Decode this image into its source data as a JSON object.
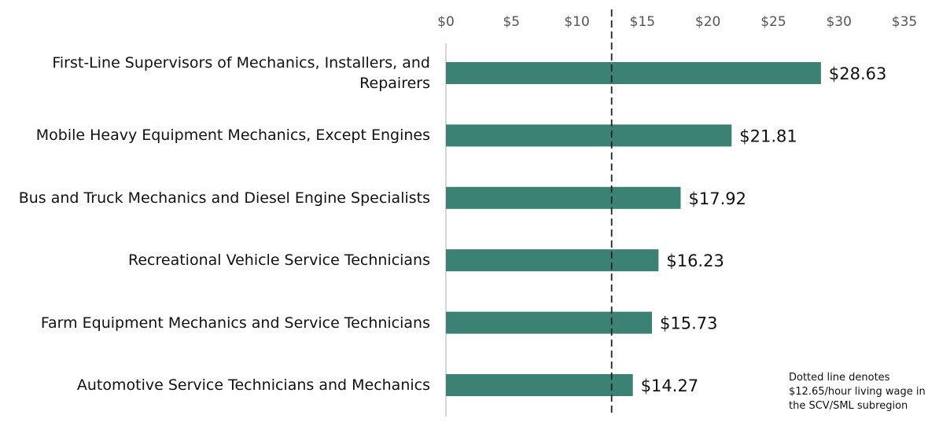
{
  "chart_data": {
    "type": "barh",
    "categories": [
      "First-Line Supervisors of Mechanics, Installers, and Repairers",
      "Mobile Heavy Equipment Mechanics, Except Engines",
      "Bus and Truck Mechanics and Diesel Engine Specialists",
      "Recreational Vehicle Service Technicians",
      "Farm Equipment Mechanics and Service Technicians",
      "Automotive Service Technicians and Mechanics"
    ],
    "values": [
      28.63,
      21.81,
      17.92,
      16.23,
      15.73,
      14.27
    ],
    "value_labels": [
      "$28.63",
      "$21.81",
      "$17.92",
      "$16.23",
      "$15.73",
      "$14.27"
    ],
    "color": "#3b8275",
    "xlim": [
      0,
      35
    ],
    "xticks": [
      {
        "value": 0,
        "label": "$0"
      },
      {
        "value": 5,
        "label": "$5"
      },
      {
        "value": 10,
        "label": "$10"
      },
      {
        "value": 15,
        "label": "$15"
      },
      {
        "value": 20,
        "label": "$20"
      },
      {
        "value": 25,
        "label": "$25"
      },
      {
        "value": 30,
        "label": "$30"
      },
      {
        "value": 35,
        "label": "$35"
      }
    ],
    "reference_line": 12.65,
    "annotation": "Dotted line denotes $12.65/hour living wage in the SCV/SML subregion"
  }
}
